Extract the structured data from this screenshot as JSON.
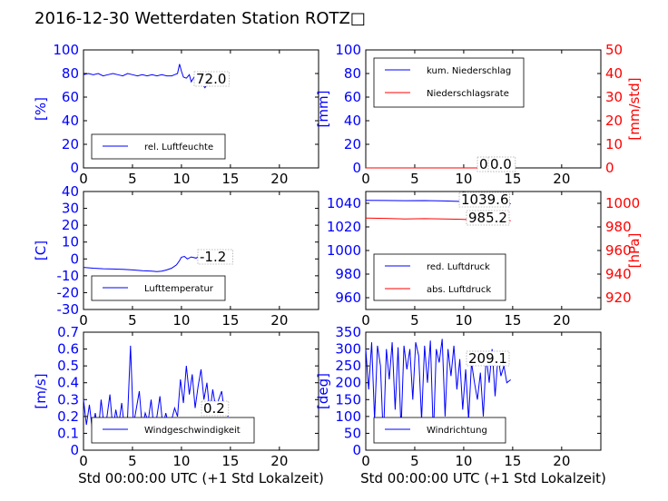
{
  "title": "2016-12-30 Wetterdaten Station ROTZ□",
  "colors": {
    "primary": "#0000ff",
    "secondary": "#ff0000"
  },
  "chart_data": [
    {
      "type": "line",
      "ylabel": "[%]",
      "xlim": [
        0,
        24
      ],
      "ylim": [
        0,
        100
      ],
      "xticks": [
        0,
        5,
        10,
        15,
        20
      ],
      "yticks": [
        0,
        20,
        40,
        60,
        80,
        100
      ],
      "legend": {
        "placement": "lower-left",
        "entries": [
          "rel. Luftfeuchte"
        ]
      },
      "annotation": "72.0",
      "series": [
        {
          "name": "rel. Luftfeuchte",
          "color": "#0000ff",
          "x": [
            0,
            0.5,
            1,
            1.5,
            2,
            2.5,
            3,
            3.5,
            4,
            4.5,
            5,
            5.5,
            6,
            6.5,
            7,
            7.5,
            8,
            8.5,
            9,
            9.3,
            9.6,
            9.8,
            10,
            10.2,
            10.5,
            10.8,
            11,
            11.3,
            11.6,
            12,
            12.4,
            12.8,
            13.2,
            13.6,
            14,
            14.4,
            14.8
          ],
          "y": [
            79,
            80,
            79,
            80,
            78,
            79,
            80,
            79,
            78,
            80,
            79,
            78,
            79,
            78,
            79,
            78,
            79,
            78,
            78,
            79,
            80,
            88,
            82,
            77,
            76,
            79,
            73,
            77,
            70,
            72,
            68,
            73,
            70,
            72,
            70,
            71,
            72
          ]
        }
      ]
    },
    {
      "type": "line",
      "ylabel": "[mm]",
      "ylabel_right": "[mm/std]",
      "xlim": [
        0,
        24
      ],
      "ylim": [
        0,
        100
      ],
      "ylim_right": [
        0,
        50
      ],
      "xticks": [
        0,
        5,
        10,
        15,
        20
      ],
      "yticks": [
        0,
        20,
        40,
        60,
        80,
        100
      ],
      "yticks_right": [
        0,
        10,
        20,
        30,
        40,
        50
      ],
      "legend": {
        "placement": "upper-left",
        "entries": [
          "kum. Niederschlag",
          "Niederschlagsrate"
        ]
      },
      "annotations": [
        "0.0",
        "0.0"
      ],
      "series": [
        {
          "name": "kum. Niederschlag",
          "color": "#0000ff",
          "axis": "left",
          "x": [
            0,
            14.8
          ],
          "y": [
            0,
            0
          ]
        },
        {
          "name": "Niederschlagsrate",
          "color": "#ff0000",
          "axis": "right",
          "x": [
            0,
            14.8
          ],
          "y": [
            0,
            0
          ]
        }
      ]
    },
    {
      "type": "line",
      "ylabel": "[C]",
      "xlim": [
        0,
        24
      ],
      "ylim": [
        -30,
        40
      ],
      "xticks": [
        0,
        5,
        10,
        15,
        20
      ],
      "yticks": [
        -30,
        -20,
        -10,
        0,
        10,
        20,
        30,
        40
      ],
      "legend": {
        "placement": "lower-left",
        "entries": [
          "Lufttemperatur"
        ]
      },
      "annotation": "-1.2",
      "series": [
        {
          "name": "Lufttemperatur",
          "color": "#0000ff",
          "x": [
            0,
            1,
            2,
            3,
            4,
            5,
            6,
            7,
            7.5,
            8,
            8.5,
            9,
            9.5,
            9.8,
            10,
            10.3,
            10.6,
            11,
            11.5,
            12,
            12.5,
            13,
            13.5,
            14,
            14.5,
            14.8
          ],
          "y": [
            -5,
            -5.5,
            -5.8,
            -6,
            -6.2,
            -6.5,
            -7,
            -7.3,
            -7.5,
            -7.2,
            -6.5,
            -5.5,
            -3.5,
            -1,
            1,
            1.5,
            0,
            1.2,
            0.5,
            2.5,
            3,
            2,
            0,
            -1.5,
            -1,
            -1.2
          ]
        }
      ]
    },
    {
      "type": "line",
      "ylabel_right": "[hPa]",
      "xlim": [
        0,
        24
      ],
      "ylim": [
        950,
        1050
      ],
      "ylim_right": [
        910,
        1010
      ],
      "xticks": [
        0,
        5,
        10,
        15,
        20
      ],
      "yticks": [
        960,
        980,
        1000,
        1020,
        1040
      ],
      "yticks_right": [
        920,
        940,
        960,
        980,
        1000
      ],
      "legend": {
        "placement": "lower-left",
        "entries": [
          "red. Luftdruck",
          "abs. Luftdruck"
        ]
      },
      "annotations": [
        "1039.6",
        "985.2"
      ],
      "series": [
        {
          "name": "red. Luftdruck",
          "color": "#0000ff",
          "axis": "left",
          "x": [
            0,
            2,
            4,
            6,
            8,
            10,
            12,
            14,
            14.8
          ],
          "y": [
            1042.5,
            1042.4,
            1042.2,
            1042.3,
            1042.0,
            1041.5,
            1040.5,
            1039.8,
            1039.6
          ]
        },
        {
          "name": "abs. Luftdruck",
          "color": "#ff0000",
          "axis": "right",
          "x": [
            0,
            2,
            4,
            6,
            8,
            10,
            12,
            14,
            14.8
          ],
          "y": [
            987.5,
            987.2,
            986.8,
            987.0,
            986.7,
            986.4,
            986.0,
            985.5,
            985.2
          ]
        }
      ]
    },
    {
      "type": "line",
      "ylabel": "[m/s]",
      "xlabel": "Std 00:00:00 UTC (+1 Std Lokalzeit)",
      "xlim": [
        0,
        24
      ],
      "ylim": [
        0,
        0.7
      ],
      "xticks": [
        0,
        5,
        10,
        15,
        20
      ],
      "yticks": [
        0.0,
        0.1,
        0.2,
        0.3,
        0.4,
        0.5,
        0.6,
        0.7
      ],
      "legend": {
        "placement": "lower-left",
        "entries": [
          "Windgeschwindigkeit"
        ]
      },
      "annotation": "0.2",
      "series": [
        {
          "name": "Windgeschwindigkeit",
          "color": "#0000ff",
          "x": [
            0,
            0.3,
            0.6,
            0.9,
            1.2,
            1.5,
            1.8,
            2.1,
            2.4,
            2.7,
            3.0,
            3.3,
            3.6,
            3.9,
            4.2,
            4.5,
            4.8,
            5.1,
            5.4,
            5.7,
            6.0,
            6.3,
            6.6,
            6.9,
            7.2,
            7.5,
            7.8,
            8.1,
            8.4,
            8.7,
            9.0,
            9.3,
            9.6,
            9.9,
            10.2,
            10.5,
            10.8,
            11.1,
            11.4,
            11.7,
            12.0,
            12.3,
            12.6,
            12.9,
            13.2,
            13.5,
            13.8,
            14.1,
            14.4,
            14.8
          ],
          "y": [
            0.3,
            0.15,
            0.27,
            0.12,
            0.22,
            0.1,
            0.3,
            0.14,
            0.2,
            0.33,
            0.12,
            0.24,
            0.15,
            0.28,
            0.12,
            0.2,
            0.62,
            0.15,
            0.25,
            0.35,
            0.13,
            0.22,
            0.17,
            0.3,
            0.12,
            0.2,
            0.32,
            0.14,
            0.22,
            0.15,
            0.18,
            0.25,
            0.2,
            0.42,
            0.28,
            0.5,
            0.33,
            0.45,
            0.25,
            0.38,
            0.48,
            0.3,
            0.4,
            0.22,
            0.36,
            0.25,
            0.3,
            0.35,
            0.22,
            0.2
          ]
        }
      ]
    },
    {
      "type": "line",
      "ylabel": "[deg]",
      "xlabel": "Std 00:00:00 UTC (+1 Std Lokalzeit)",
      "xlim": [
        0,
        24
      ],
      "ylim": [
        0,
        350
      ],
      "xticks": [
        0,
        5,
        10,
        15,
        20
      ],
      "yticks": [
        0,
        50,
        100,
        150,
        200,
        250,
        300,
        350
      ],
      "legend": {
        "placement": "lower-left",
        "entries": [
          "Windrichtung"
        ]
      },
      "annotation": "209.1",
      "series": [
        {
          "name": "Windrichtung",
          "color": "#0000ff",
          "x": [
            0,
            0.3,
            0.6,
            0.9,
            1.2,
            1.5,
            1.8,
            2.1,
            2.4,
            2.7,
            3.0,
            3.3,
            3.6,
            3.9,
            4.2,
            4.5,
            4.8,
            5.1,
            5.4,
            5.7,
            6.0,
            6.3,
            6.6,
            6.9,
            7.2,
            7.5,
            7.8,
            8.1,
            8.4,
            8.7,
            9.0,
            9.3,
            9.6,
            9.9,
            10.2,
            10.5,
            10.8,
            11.1,
            11.4,
            11.7,
            12.0,
            12.3,
            12.6,
            12.9,
            13.2,
            13.5,
            13.8,
            14.1,
            14.4,
            14.8
          ],
          "y": [
            300,
            180,
            320,
            90,
            310,
            250,
            30,
            300,
            210,
            320,
            120,
            305,
            60,
            310,
            240,
            300,
            150,
            320,
            280,
            90,
            310,
            200,
            325,
            40,
            300,
            260,
            330,
            100,
            300,
            220,
            310,
            180,
            270,
            120,
            240,
            90,
            260,
            200,
            150,
            230,
            100,
            280,
            200,
            300,
            160,
            280,
            220,
            250,
            200,
            209
          ]
        }
      ]
    }
  ]
}
